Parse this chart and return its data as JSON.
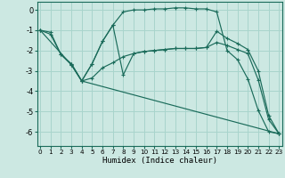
{
  "xlabel": "Humidex (Indice chaleur)",
  "xlim": [
    -0.3,
    23.3
  ],
  "ylim": [
    -6.7,
    0.4
  ],
  "yticks": [
    0,
    -1,
    -2,
    -3,
    -4,
    -5,
    -6
  ],
  "xticks": [
    0,
    1,
    2,
    3,
    4,
    5,
    6,
    7,
    8,
    9,
    10,
    11,
    12,
    13,
    14,
    15,
    16,
    17,
    18,
    19,
    20,
    21,
    22,
    23
  ],
  "bg_color": "#cce8e2",
  "grid_color": "#a8d4cc",
  "line_color": "#1a6b5a",
  "curves": [
    {
      "x": [
        0,
        1,
        2,
        3,
        4,
        5,
        6,
        7,
        8,
        9,
        10,
        11,
        12,
        13,
        14,
        15,
        16,
        17,
        18,
        19,
        20,
        21,
        22,
        23
      ],
      "y": [
        -1,
        -1.1,
        -2.2,
        -2.7,
        -3.5,
        -2.65,
        -1.55,
        -0.75,
        -0.1,
        0.0,
        0.0,
        0.05,
        0.05,
        0.1,
        0.1,
        0.05,
        0.05,
        -0.1,
        -2.0,
        -2.45,
        -3.4,
        -4.95,
        -6.0,
        -6.1
      ]
    },
    {
      "x": [
        0,
        3,
        4,
        23
      ],
      "y": [
        -1.0,
        -2.7,
        -3.5,
        -6.1
      ]
    },
    {
      "x": [
        0,
        1,
        2,
        3,
        4,
        5,
        6,
        7,
        8,
        9,
        10,
        11,
        12,
        13,
        14,
        15,
        16,
        17,
        18,
        19,
        20,
        21,
        22,
        23
      ],
      "y": [
        -1.0,
        -1.2,
        -2.2,
        -2.65,
        -3.5,
        -3.35,
        -2.85,
        -2.6,
        -2.3,
        -2.15,
        -2.05,
        -2.0,
        -1.95,
        -1.9,
        -1.9,
        -1.9,
        -1.85,
        -1.6,
        -1.75,
        -1.95,
        -2.15,
        -3.45,
        -5.4,
        -6.1
      ]
    },
    {
      "x": [
        3,
        4,
        5,
        6,
        7,
        8,
        9,
        10,
        11,
        12,
        13,
        14,
        15,
        16,
        17,
        18,
        19,
        20,
        21,
        22,
        23
      ],
      "y": [
        -2.65,
        -3.5,
        -2.65,
        -1.55,
        -0.75,
        -3.2,
        -2.15,
        -2.05,
        -2.0,
        -1.95,
        -1.9,
        -1.9,
        -1.9,
        -1.85,
        -1.05,
        -1.4,
        -1.65,
        -1.95,
        -3.0,
        -5.2,
        -6.1
      ]
    }
  ]
}
